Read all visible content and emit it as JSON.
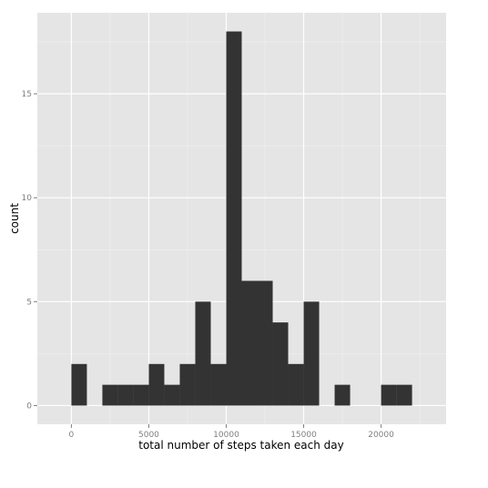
{
  "chart_data": {
    "type": "bar",
    "title": "",
    "xlabel": "total number of steps taken each day",
    "ylabel": "count",
    "bin_width": 1000,
    "bins": [
      {
        "start": 0,
        "end": 1000,
        "count": 2
      },
      {
        "start": 1000,
        "end": 2000,
        "count": 0
      },
      {
        "start": 2000,
        "end": 3000,
        "count": 1
      },
      {
        "start": 3000,
        "end": 4000,
        "count": 1
      },
      {
        "start": 4000,
        "end": 5000,
        "count": 1
      },
      {
        "start": 5000,
        "end": 6000,
        "count": 2
      },
      {
        "start": 6000,
        "end": 7000,
        "count": 1
      },
      {
        "start": 7000,
        "end": 8000,
        "count": 2
      },
      {
        "start": 8000,
        "end": 9000,
        "count": 5
      },
      {
        "start": 9000,
        "end": 10000,
        "count": 2
      },
      {
        "start": 10000,
        "end": 11000,
        "count": 18
      },
      {
        "start": 11000,
        "end": 12000,
        "count": 6
      },
      {
        "start": 12000,
        "end": 13000,
        "count": 6
      },
      {
        "start": 13000,
        "end": 14000,
        "count": 4
      },
      {
        "start": 14000,
        "end": 15000,
        "count": 2
      },
      {
        "start": 15000,
        "end": 16000,
        "count": 5
      },
      {
        "start": 16000,
        "end": 17000,
        "count": 0
      },
      {
        "start": 17000,
        "end": 18000,
        "count": 1
      },
      {
        "start": 18000,
        "end": 19000,
        "count": 0
      },
      {
        "start": 19000,
        "end": 20000,
        "count": 0
      },
      {
        "start": 20000,
        "end": 21000,
        "count": 1
      },
      {
        "start": 21000,
        "end": 22000,
        "count": 1
      }
    ],
    "xlim": [
      -2200,
      24200
    ],
    "ylim": [
      -0.9,
      18.9
    ],
    "xticks": [
      0,
      5000,
      10000,
      15000,
      20000
    ],
    "xtick_labels": [
      "0",
      "5000",
      "10000",
      "15000",
      "20000"
    ],
    "yticks": [
      0,
      5,
      10,
      15
    ],
    "ytick_labels": [
      "0",
      "5",
      "10",
      "15"
    ],
    "grid": true,
    "legend": false,
    "colors": {
      "panel_background": "#e5e5e5",
      "grid_major": "#ffffff",
      "grid_minor": "#f2f2f2",
      "bar_fill": "#333333",
      "tick_label": "#7f7f7f",
      "axis_title": "#000000"
    }
  }
}
